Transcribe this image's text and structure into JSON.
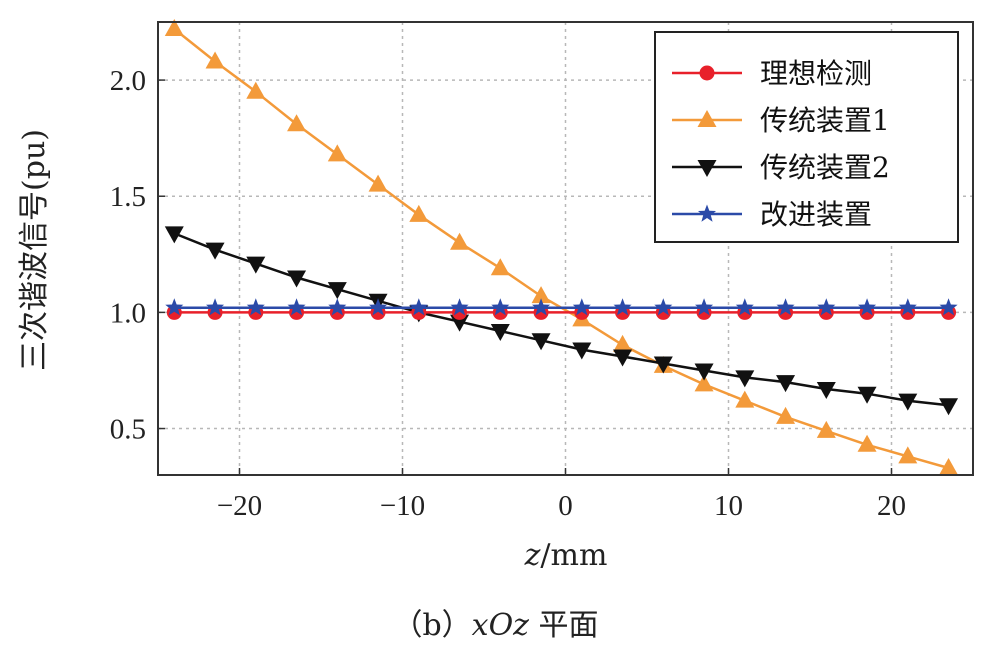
{
  "caption": {
    "prefix": "（b）",
    "plane": "xOz",
    "suffix": " 平面"
  },
  "chart_data": {
    "type": "line",
    "xlabel_italic": "z",
    "xlabel_unit": "/mm",
    "ylabel": "三次谐波信号(pu)",
    "xlim": [
      -25,
      25
    ],
    "ylim": [
      0.3,
      2.25
    ],
    "xticks": [
      -20,
      -10,
      0,
      10,
      20
    ],
    "xtick_labels": [
      "−20",
      "−10",
      "0",
      "10",
      "20"
    ],
    "yticks": [
      0.5,
      1.0,
      1.5,
      2.0
    ],
    "ytick_labels": [
      "0.5",
      "1.0",
      "1.5",
      "2.0"
    ],
    "grid": true,
    "legend_position": "top-right",
    "x": [
      -24,
      -21.5,
      -19,
      -16.5,
      -14,
      -11.5,
      -9,
      -6.5,
      -4,
      -1.5,
      1,
      3.5,
      6,
      8.5,
      11,
      13.5,
      16,
      18.5,
      21,
      23.5
    ],
    "series": [
      {
        "name": "理想检测",
        "color": "#e8202a",
        "marker": "circle",
        "values": [
          1.0,
          1.0,
          1.0,
          1.0,
          1.0,
          1.0,
          1.0,
          1.0,
          1.0,
          1.0,
          1.0,
          1.0,
          1.0,
          1.0,
          1.0,
          1.0,
          1.0,
          1.0,
          1.0,
          1.0
        ]
      },
      {
        "name": "传统装置1",
        "color": "#f39a3a",
        "marker": "triangle-up",
        "values": [
          2.22,
          2.08,
          1.95,
          1.81,
          1.68,
          1.55,
          1.42,
          1.3,
          1.19,
          1.07,
          0.97,
          0.86,
          0.77,
          0.69,
          0.62,
          0.55,
          0.49,
          0.43,
          0.38,
          0.33
        ]
      },
      {
        "name": "传统装置2",
        "color": "#111111",
        "marker": "triangle-down",
        "values": [
          1.34,
          1.27,
          1.21,
          1.15,
          1.1,
          1.05,
          1.0,
          0.96,
          0.92,
          0.88,
          0.84,
          0.81,
          0.78,
          0.75,
          0.72,
          0.7,
          0.67,
          0.65,
          0.62,
          0.6
        ]
      },
      {
        "name": "改进装置",
        "color": "#2b4aa8",
        "marker": "star",
        "values": [
          1.02,
          1.02,
          1.02,
          1.02,
          1.02,
          1.02,
          1.02,
          1.02,
          1.02,
          1.02,
          1.02,
          1.02,
          1.02,
          1.02,
          1.02,
          1.02,
          1.02,
          1.02,
          1.02,
          1.02
        ]
      }
    ]
  }
}
